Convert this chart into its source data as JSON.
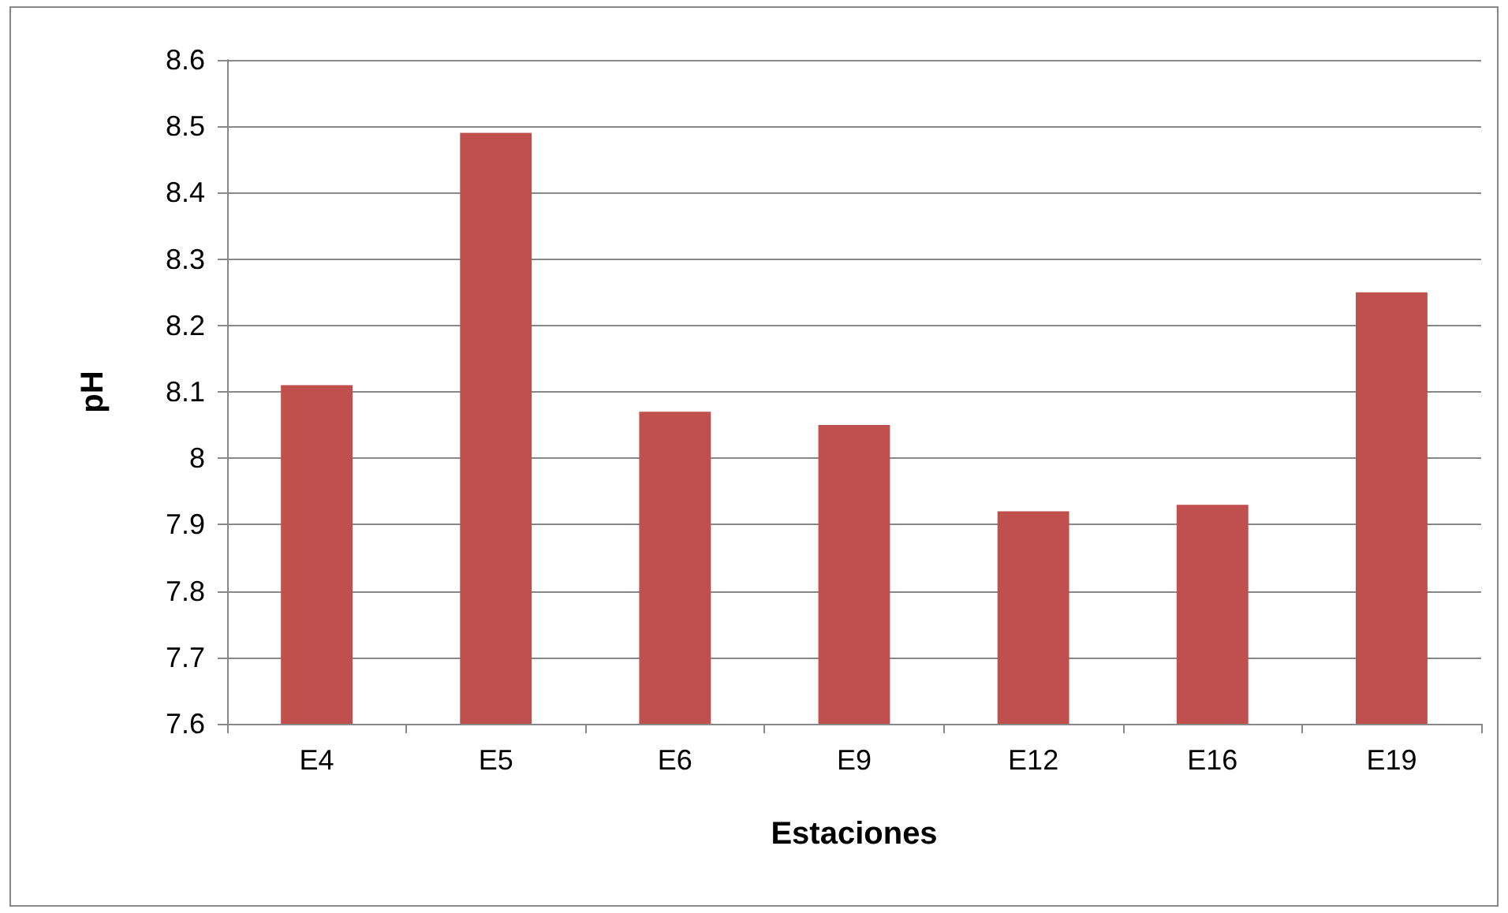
{
  "chart_data": {
    "type": "bar",
    "xlabel": "Estaciones",
    "ylabel": "pH",
    "categories": [
      "E4",
      "E5",
      "E6",
      "E9",
      "E12",
      "E16",
      "E19"
    ],
    "values": [
      8.11,
      8.49,
      8.07,
      8.05,
      7.92,
      7.93,
      8.25
    ],
    "color": "#c0504d",
    "ylim": [
      7.6,
      8.6
    ],
    "yticks": [
      7.6,
      7.7,
      7.8,
      7.9,
      8,
      8.1,
      8.2,
      8.3,
      8.4,
      8.5,
      8.6
    ],
    "grid": "y"
  }
}
